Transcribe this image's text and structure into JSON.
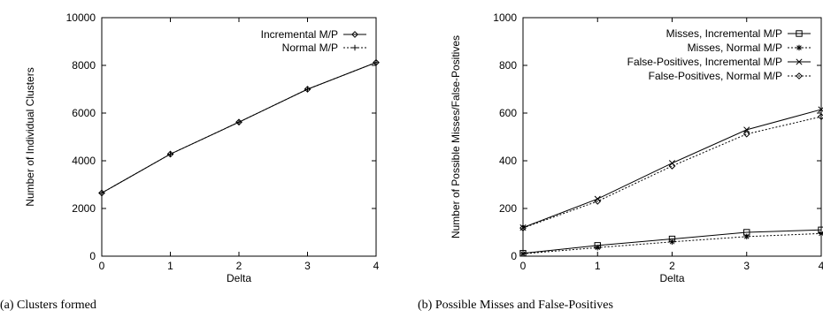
{
  "captions": {
    "a": "(a) Clusters formed",
    "b": "(b) Possible Misses and False-Positives"
  },
  "chart_data": [
    {
      "type": "line",
      "xlabel": "Delta",
      "ylabel": "Number of Individual Clusters",
      "x": [
        0,
        1,
        2,
        3,
        4
      ],
      "xlim": [
        0,
        4
      ],
      "ylim": [
        0,
        10000
      ],
      "xticks": [
        0,
        1,
        2,
        3,
        4
      ],
      "yticks": [
        0,
        2000,
        4000,
        6000,
        8000,
        10000
      ],
      "grid": false,
      "legend_position": "top-right",
      "series": [
        {
          "name": "Incremental M/P",
          "values": [
            2650,
            4280,
            5620,
            7000,
            8120
          ],
          "marker": "diamond",
          "dash": "solid",
          "color": "#000000"
        },
        {
          "name": "Normal M/P",
          "values": [
            2650,
            4280,
            5620,
            7000,
            8120
          ],
          "marker": "plus",
          "dash": "dotted",
          "color": "#000000"
        }
      ]
    },
    {
      "type": "line",
      "xlabel": "Delta",
      "ylabel": "Number of Possible Misses/False-Positives",
      "x": [
        0,
        1,
        2,
        3,
        4
      ],
      "xlim": [
        0,
        4
      ],
      "ylim": [
        0,
        1000
      ],
      "xticks": [
        0,
        1,
        2,
        3,
        4
      ],
      "yticks": [
        0,
        200,
        400,
        600,
        800,
        1000
      ],
      "grid": false,
      "legend_position": "top-right",
      "series": [
        {
          "name": "Misses, Incremental M/P",
          "values": [
            12,
            45,
            72,
            100,
            110
          ],
          "marker": "square",
          "dash": "solid",
          "color": "#000000"
        },
        {
          "name": "Misses, Normal M/P",
          "values": [
            10,
            36,
            60,
            82,
            95
          ],
          "marker": "star",
          "dash": "dotted",
          "color": "#000000"
        },
        {
          "name": "False-Positives, Incremental M/P",
          "values": [
            120,
            240,
            390,
            530,
            615
          ],
          "marker": "x",
          "dash": "solid",
          "color": "#000000"
        },
        {
          "name": "False-Positives, Normal M/P",
          "values": [
            118,
            230,
            378,
            512,
            585
          ],
          "marker": "diamond",
          "dash": "dotted",
          "color": "#000000"
        }
      ]
    }
  ]
}
